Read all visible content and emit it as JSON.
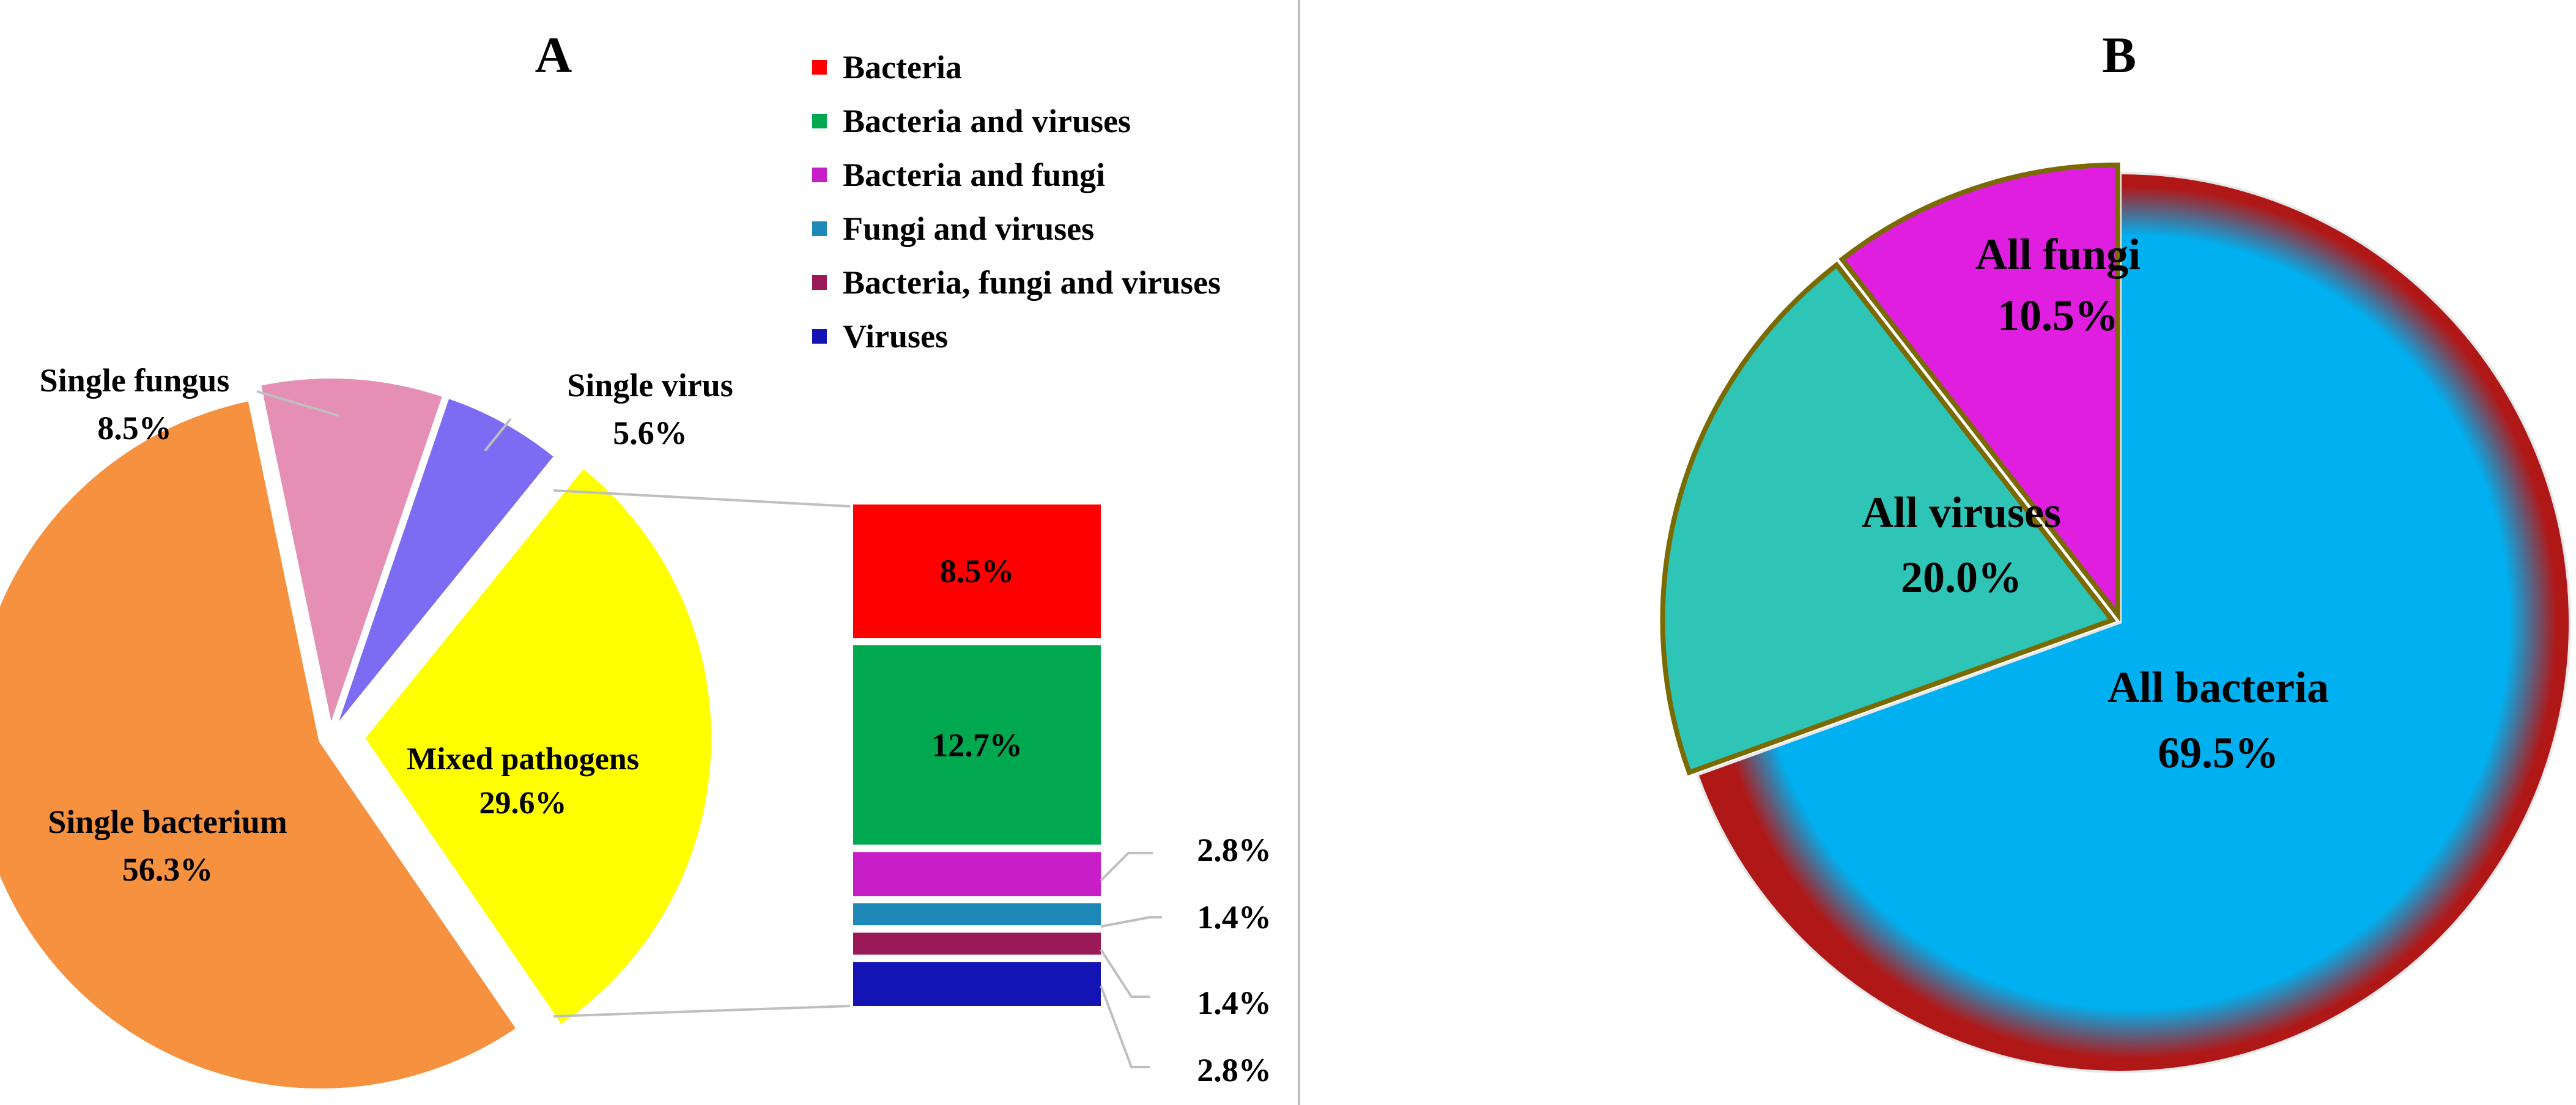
{
  "chart_data": [
    {
      "type": "pie",
      "title": "A",
      "slices": [
        {
          "label": "Single bacterium",
          "value": 56.3,
          "value_label": "56.3%",
          "color": "#f6913f"
        },
        {
          "label": "Single fungus",
          "value": 8.5,
          "value_label": "8.5%",
          "color": "#e58fb4"
        },
        {
          "label": "Single virus",
          "value": 5.6,
          "value_label": "5.6%",
          "color": "#7b6cf3"
        },
        {
          "label": "Mixed pathogens",
          "value": 29.6,
          "value_label": "29.6%",
          "color": "#ffff00",
          "exploded_to_bar": true
        }
      ],
      "breakdown": {
        "type": "stacked_bar",
        "of": "Mixed pathogens",
        "segments": [
          {
            "name": "Bacteria",
            "value": 8.5,
            "value_label": "8.5%",
            "color": "#ff0000"
          },
          {
            "name": "Bacteria and viruses",
            "value": 12.7,
            "value_label": "12.7%",
            "color": "#00a850"
          },
          {
            "name": "Bacteria and fungi",
            "value": 2.8,
            "value_label": "2.8%",
            "color": "#c81ec8"
          },
          {
            "name": "Fungi and viruses",
            "value": 1.4,
            "value_label": "1.4%",
            "color": "#1e88b8"
          },
          {
            "name": "Bacteria, fungi and viruses",
            "value": 1.4,
            "value_label": "1.4%",
            "color": "#9a1a58"
          },
          {
            "name": "Viruses",
            "value": 2.8,
            "value_label": "2.8%",
            "color": "#1414b4"
          }
        ]
      },
      "legend": {
        "placement": "top-right",
        "entries": [
          "Bacteria",
          "Bacteria and viruses",
          "Bacteria and fungi",
          "Fungi and viruses",
          "Bacteria, fungi and viruses",
          "Viruses"
        ]
      }
    },
    {
      "type": "pie",
      "title": "B",
      "slices": [
        {
          "label": "All bacteria",
          "value": 69.5,
          "value_label": "69.5%",
          "color": "#00b0f0"
        },
        {
          "label": "All viruses",
          "value": 20.0,
          "value_label": "20.0%",
          "color": "#2ec4b6"
        },
        {
          "label": "All fungi",
          "value": 10.5,
          "value_label": "10.5%",
          "color": "#e01ee0"
        }
      ]
    }
  ]
}
